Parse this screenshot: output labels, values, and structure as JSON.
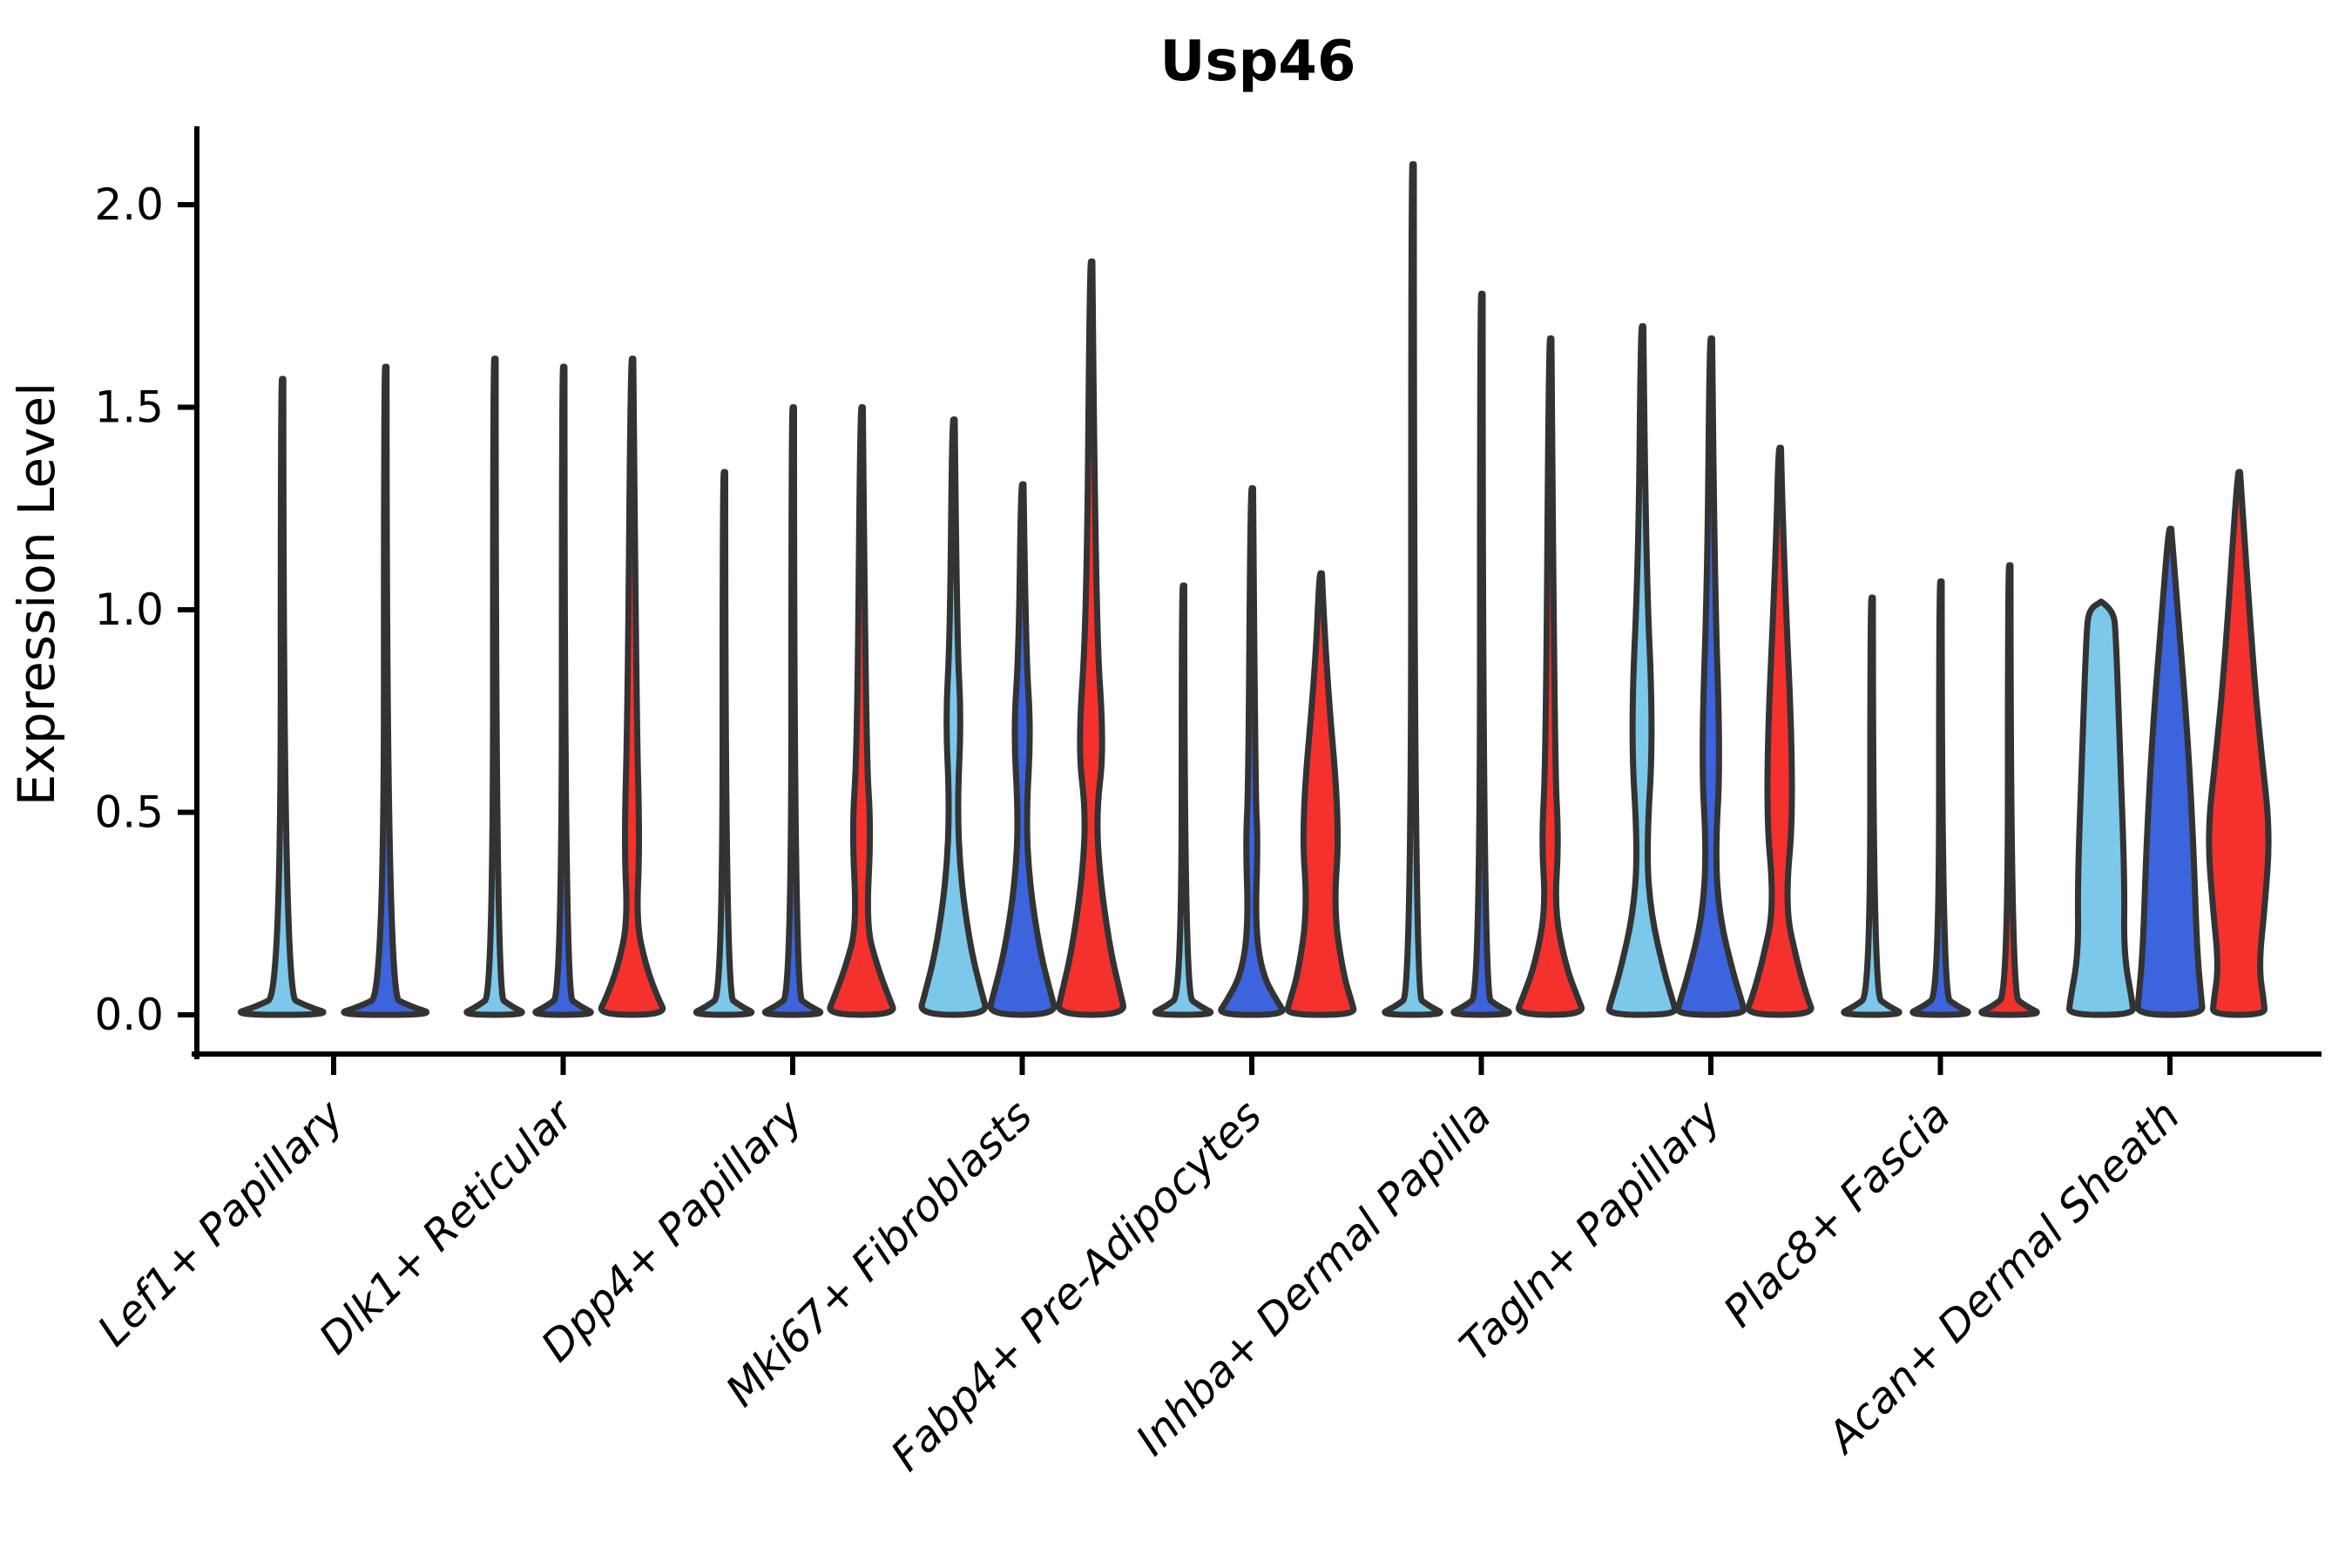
{
  "chart_data": {
    "type": "violin",
    "title": "Usp46",
    "xlabel": "",
    "ylabel": "Expression Level",
    "ylim": [
      0.0,
      2.2
    ],
    "yticks": [
      "0.0",
      "0.5",
      "1.0",
      "1.5",
      "2.0"
    ],
    "ytick_values": [
      0.0,
      0.5,
      1.0,
      1.5,
      2.0
    ],
    "grid": false,
    "legend": "none",
    "colors": {
      "light_blue": "#7CC8EA",
      "royal_blue": "#3C64DC",
      "red": "#F5312D",
      "outline": "#333333"
    },
    "categories": [
      "Lef1+ Papillary",
      "Dlk1+ Reticular",
      "Dpp4+ Papillary",
      "Mki67+ Fibroblasts",
      "Fabp4+ Pre-Adipocytes",
      "Inhba+ Dermal Papilla",
      "Tagln+ Papillary",
      "Plac8+ Fascia",
      "Acan+ Dermal Sheath"
    ],
    "groups": [
      {
        "label": "Lef1+ Papillary",
        "violins": [
          {
            "color": "#7CC8EA",
            "max_expression": 1.57,
            "shape": "spike",
            "profile": [
              [
                1.57,
                1.5
              ],
              [
                0.05,
                1.5
              ],
              [
                0.02,
                30
              ],
              [
                0,
                59
              ]
            ]
          },
          {
            "color": "#3C64DC",
            "max_expression": 1.6,
            "shape": "spike",
            "profile": [
              [
                1.6,
                1.5
              ],
              [
                0.05,
                1.5
              ],
              [
                0.02,
                30
              ],
              [
                0,
                59
              ]
            ]
          }
        ]
      },
      {
        "label": "Dlk1+ Reticular",
        "violins": [
          {
            "color": "#7CC8EA",
            "max_expression": 1.62,
            "shape": "spike",
            "profile": [
              [
                1.62,
                1.5
              ],
              [
                0.05,
                1.5
              ],
              [
                0.02,
                20
              ],
              [
                0,
                39.5
              ]
            ]
          },
          {
            "color": "#3C64DC",
            "max_expression": 1.6,
            "shape": "spike",
            "profile": [
              [
                1.6,
                1.5
              ],
              [
                0.05,
                1.5
              ],
              [
                0.02,
                20
              ],
              [
                0,
                39.5
              ]
            ]
          },
          {
            "color": "#F5312D",
            "max_expression": 1.62,
            "shape": "spike_bulge",
            "profile": [
              [
                1.62,
                1.5
              ],
              [
                0.75,
                5
              ],
              [
                0.42,
                9
              ],
              [
                0.23,
                5
              ],
              [
                0.12,
                16
              ],
              [
                0.04,
                30
              ],
              [
                0,
                39.5
              ]
            ]
          }
        ]
      },
      {
        "label": "Dpp4+ Papillary",
        "violins": [
          {
            "color": "#7CC8EA",
            "max_expression": 1.34,
            "shape": "spike",
            "profile": [
              [
                1.34,
                1.5
              ],
              [
                0.05,
                1.5
              ],
              [
                0.02,
                20
              ],
              [
                0,
                39.5
              ]
            ]
          },
          {
            "color": "#3C64DC",
            "max_expression": 1.5,
            "shape": "spike",
            "profile": [
              [
                1.5,
                1.5
              ],
              [
                0.05,
                1.5
              ],
              [
                0.02,
                20
              ],
              [
                0,
                39.5
              ]
            ]
          },
          {
            "color": "#F5312D",
            "max_expression": 1.5,
            "shape": "spike_bulge",
            "profile": [
              [
                1.5,
                1.5
              ],
              [
                0.65,
                5
              ],
              [
                0.46,
                11
              ],
              [
                0.22,
                5.5
              ],
              [
                0.12,
                18
              ],
              [
                0.04,
                32
              ],
              [
                0,
                39.5
              ]
            ]
          }
        ]
      },
      {
        "label": "Mki67+ Fibroblasts",
        "violins": [
          {
            "color": "#7CC8EA",
            "max_expression": 1.47,
            "shape": "spike_bulge",
            "profile": [
              [
                1.47,
                1.5
              ],
              [
                0.93,
                4
              ],
              [
                0.73,
                9
              ],
              [
                0.52,
                4.5
              ],
              [
                0.34,
                8
              ],
              [
                0.16,
                20
              ],
              [
                0.05,
                33
              ],
              [
                0,
                39.5
              ]
            ]
          },
          {
            "color": "#3C64DC",
            "max_expression": 1.31,
            "shape": "spike_bulge",
            "profile": [
              [
                1.31,
                1.5
              ],
              [
                0.9,
                4
              ],
              [
                0.7,
                10
              ],
              [
                0.49,
                4.5
              ],
              [
                0.33,
                8
              ],
              [
                0.16,
                20
              ],
              [
                0.05,
                33
              ],
              [
                0,
                39.5
              ]
            ]
          },
          {
            "color": "#F5312D",
            "max_expression": 1.86,
            "shape": "spike_bulge",
            "profile": [
              [
                1.86,
                1.5
              ],
              [
                0.98,
                5
              ],
              [
                0.66,
                15
              ],
              [
                0.5,
                6
              ],
              [
                0.34,
                10
              ],
              [
                0.16,
                22
              ],
              [
                0.05,
                34
              ],
              [
                0,
                39.5
              ]
            ]
          }
        ]
      },
      {
        "label": "Fabp4+ Pre-Adipocytes",
        "violins": [
          {
            "color": "#7CC8EA",
            "max_expression": 1.06,
            "shape": "spike",
            "profile": [
              [
                1.06,
                1.5
              ],
              [
                0.05,
                1.5
              ],
              [
                0.02,
                20
              ],
              [
                0,
                39.5
              ]
            ]
          },
          {
            "color": "#3C64DC",
            "max_expression": 1.3,
            "shape": "spike_bulge",
            "profile": [
              [
                1.3,
                1.5
              ],
              [
                0.55,
                4
              ],
              [
                0.43,
                7
              ],
              [
                0.22,
                4
              ],
              [
                0.1,
                12
              ],
              [
                0.03,
                30
              ],
              [
                0,
                39.5
              ]
            ]
          },
          {
            "color": "#F5312D",
            "max_expression": 1.09,
            "shape": "spike_bulge",
            "profile": [
              [
                1.09,
                1.5
              ],
              [
                0.86,
                6
              ],
              [
                0.47,
                22
              ],
              [
                0.26,
                15
              ],
              [
                0.1,
                26
              ],
              [
                0.03,
                36
              ],
              [
                0,
                39.5
              ]
            ]
          }
        ]
      },
      {
        "label": "Inhba+ Dermal Papilla",
        "violins": [
          {
            "color": "#7CC8EA",
            "max_expression": 2.1,
            "shape": "spike",
            "profile": [
              [
                2.1,
                1.5
              ],
              [
                0.05,
                1.5
              ],
              [
                0.02,
                20
              ],
              [
                0,
                39.5
              ]
            ]
          },
          {
            "color": "#3C64DC",
            "max_expression": 1.78,
            "shape": "spike",
            "profile": [
              [
                1.78,
                1.5
              ],
              [
                0.05,
                1.5
              ],
              [
                0.02,
                20
              ],
              [
                0,
                39.5
              ]
            ]
          },
          {
            "color": "#F5312D",
            "max_expression": 1.67,
            "shape": "spike_bulge",
            "profile": [
              [
                1.67,
                1.5
              ],
              [
                0.62,
                5
              ],
              [
                0.43,
                10
              ],
              [
                0.26,
                5
              ],
              [
                0.12,
                18
              ],
              [
                0.04,
                32
              ],
              [
                0,
                39.5
              ]
            ]
          }
        ]
      },
      {
        "label": "Tagln+ Papillary",
        "violins": [
          {
            "color": "#7CC8EA",
            "max_expression": 1.7,
            "shape": "spike_bulge",
            "profile": [
              [
                1.7,
                1.5
              ],
              [
                1.13,
                4
              ],
              [
                0.7,
                13
              ],
              [
                0.41,
                5
              ],
              [
                0.25,
                10
              ],
              [
                0.1,
                26
              ],
              [
                0.03,
                36
              ],
              [
                0,
                39.5
              ]
            ]
          },
          {
            "color": "#3C64DC",
            "max_expression": 1.67,
            "shape": "spike_bulge",
            "profile": [
              [
                1.67,
                1.5
              ],
              [
                1.08,
                4
              ],
              [
                0.63,
                11
              ],
              [
                0.4,
                5
              ],
              [
                0.24,
                10
              ],
              [
                0.1,
                26
              ],
              [
                0.03,
                36
              ],
              [
                0,
                39.5
              ]
            ]
          },
          {
            "color": "#F5312D",
            "max_expression": 1.4,
            "shape": "spike_bulge",
            "profile": [
              [
                1.4,
                1.5
              ],
              [
                1.16,
                4
              ],
              [
                0.53,
                17
              ],
              [
                0.27,
                6
              ],
              [
                0.13,
                20
              ],
              [
                0.04,
                32
              ],
              [
                0,
                39.5
              ]
            ]
          }
        ]
      },
      {
        "label": "Plac8+ Fascia",
        "violins": [
          {
            "color": "#7CC8EA",
            "max_expression": 1.03,
            "shape": "spike",
            "profile": [
              [
                1.03,
                1.5
              ],
              [
                0.05,
                1.5
              ],
              [
                0.02,
                20
              ],
              [
                0,
                39.5
              ]
            ]
          },
          {
            "color": "#3C64DC",
            "max_expression": 1.07,
            "shape": "spike",
            "profile": [
              [
                1.07,
                1.5
              ],
              [
                0.05,
                1.5
              ],
              [
                0.02,
                20
              ],
              [
                0,
                39.5
              ]
            ]
          },
          {
            "color": "#F5312D",
            "max_expression": 1.11,
            "shape": "spike",
            "profile": [
              [
                1.11,
                1.5
              ],
              [
                0.05,
                1.5
              ],
              [
                0.02,
                20
              ],
              [
                0,
                39.5
              ]
            ]
          }
        ]
      },
      {
        "label": "Acan+ Dermal Sheath",
        "violins": [
          {
            "color": "#7CC8EA",
            "max_expression": 1.02,
            "shape": "wide",
            "profile": [
              [
                1.02,
                0
              ],
              [
                1.0,
                14
              ],
              [
                0.94,
                17
              ],
              [
                0.63,
                22
              ],
              [
                0.33,
                27
              ],
              [
                0.15,
                26
              ],
              [
                0.03,
                36
              ],
              [
                0,
                37
              ]
            ]
          },
          {
            "color": "#3C64DC",
            "max_expression": 1.2,
            "shape": "wide",
            "profile": [
              [
                1.2,
                1.5
              ],
              [
                1.0,
                9
              ],
              [
                0.7,
                20
              ],
              [
                0.42,
                27
              ],
              [
                0.16,
                31
              ],
              [
                0.04,
                36
              ],
              [
                0,
                38
              ]
            ]
          },
          {
            "color": "#F5312D",
            "max_expression": 1.34,
            "shape": "wide",
            "profile": [
              [
                1.34,
                1.5
              ],
              [
                0.87,
                16
              ],
              [
                0.645,
                26
              ],
              [
                0.45,
                36
              ],
              [
                0.27,
                30
              ],
              [
                0.12,
                23
              ],
              [
                0.03,
                29
              ],
              [
                0,
                30
              ]
            ]
          }
        ]
      }
    ]
  }
}
